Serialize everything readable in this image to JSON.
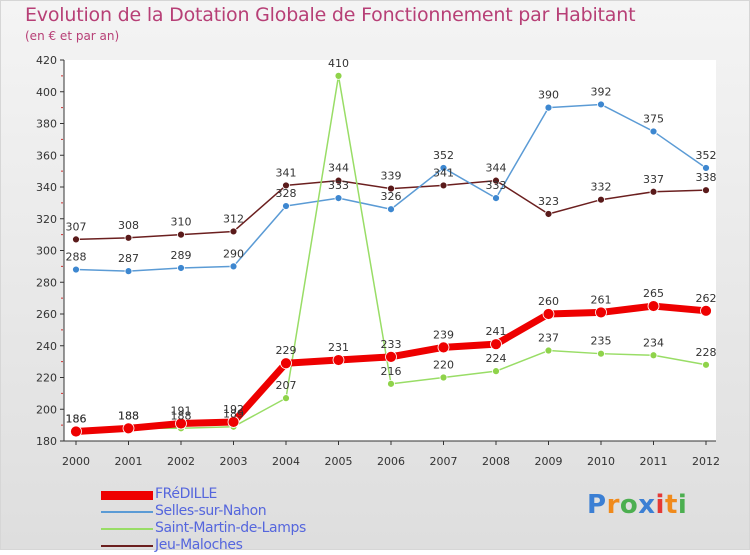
{
  "title": "Evolution de la Dotation Globale de Fonctionnement par Habitant",
  "subtitle": "(en € et par an)",
  "logo_letters": [
    {
      "char": "P",
      "color": "#3b7fd4"
    },
    {
      "char": "r",
      "color": "#f08a1c"
    },
    {
      "char": "o",
      "color": "#4caf50"
    },
    {
      "char": "x",
      "color": "#3b7fd4"
    },
    {
      "char": "i",
      "color": "#e53935"
    },
    {
      "char": "t",
      "color": "#f08a1c"
    },
    {
      "char": "i",
      "color": "#4caf50"
    }
  ],
  "chart_data": {
    "type": "line",
    "title": "Evolution de la Dotation Globale de Fonctionnement par Habitant",
    "ylabel": "(en € et par an)",
    "xlabel": "",
    "categories": [
      "2000",
      "2001",
      "2002",
      "2003",
      "2004",
      "2005",
      "2006",
      "2007",
      "2008",
      "2009",
      "2010",
      "2011",
      "2012"
    ],
    "ylim": [
      180,
      420
    ],
    "yticks": [
      180,
      200,
      220,
      240,
      260,
      280,
      300,
      320,
      340,
      360,
      380,
      400,
      420
    ],
    "grid": false,
    "legend_position": "bottom-left",
    "series": [
      {
        "name": "Jeu-Maloches",
        "color": "#6b1f1f",
        "values": [
          307,
          308,
          310,
          312,
          341,
          344,
          339,
          341,
          344,
          323,
          332,
          337,
          338
        ]
      },
      {
        "name": "Selles-sur-Nahon",
        "color": "#5b9bd5",
        "values": [
          288,
          287,
          289,
          290,
          328,
          333,
          326,
          352,
          333,
          390,
          392,
          375,
          352
        ]
      },
      {
        "name": "Saint-Martin-de-Lamps",
        "color": "#99dd66",
        "values": [
          186,
          188,
          188,
          189,
          207,
          410,
          216,
          220,
          224,
          237,
          235,
          234,
          228
        ]
      },
      {
        "name": "FRéDILLE",
        "color": "#ee0000",
        "values": [
          186,
          188,
          191,
          192,
          229,
          231,
          233,
          239,
          241,
          260,
          261,
          265,
          262
        ]
      }
    ],
    "legend_order": [
      "FRéDILLE",
      "Selles-sur-Nahon",
      "Saint-Martin-de-Lamps",
      "Jeu-Maloches"
    ]
  }
}
